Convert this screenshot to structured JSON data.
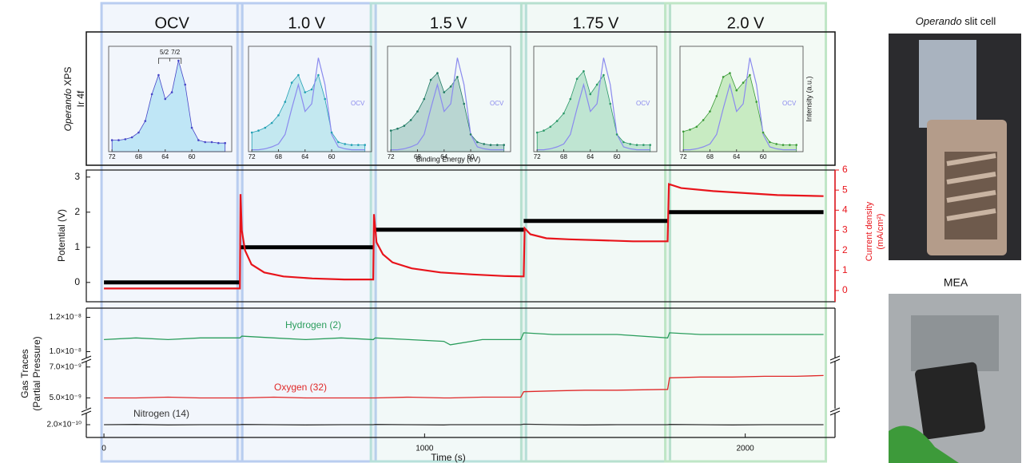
{
  "stages": [
    {
      "label": "OCV",
      "start": 0,
      "end": 424,
      "color": "#b9cdf0"
    },
    {
      "label": "1.0 V",
      "start": 424,
      "end": 840,
      "color": "#b9cdf0"
    },
    {
      "label": "1.5 V",
      "start": 840,
      "end": 1309,
      "color": "#b7e0da"
    },
    {
      "label": "1.75 V",
      "start": 1309,
      "end": 1758,
      "color": "#b7e0cf"
    },
    {
      "label": "2.0 V",
      "start": 1758,
      "end": 2244,
      "color": "#bfe6c6"
    }
  ],
  "photos": [
    {
      "title": {
        "italic": "Operando",
        "text": "slit cell"
      }
    },
    {
      "title": "MEA"
    }
  ],
  "chart_data": [
    {
      "type": "area",
      "ylabel": {
        "italic": "Operando",
        "text": "XPS"
      },
      "ylabel2": "Ir 4f",
      "xlabel": "Binding Energy (eV)",
      "y2label": "Intensity (a.u.)",
      "x": [
        72,
        71,
        70,
        69,
        68,
        67,
        66,
        65,
        64,
        63,
        62,
        61,
        60,
        59,
        58,
        57,
        56,
        55
      ],
      "xlim": [
        72.5,
        54
      ],
      "ylim": [
        0,
        1.1
      ],
      "xticks": [
        72,
        68,
        64,
        60
      ],
      "panels": [
        {
          "values": [
            0.12,
            0.12,
            0.13,
            0.15,
            0.2,
            0.32,
            0.6,
            0.8,
            0.55,
            0.62,
            0.95,
            0.7,
            0.25,
            0.12,
            0.1,
            0.1,
            0.09,
            0.09
          ],
          "fill": "#bfe6f6",
          "color": "#4646c8",
          "annotations": [
            "5/2",
            "7/2"
          ]
        },
        {
          "values": [
            0.2,
            0.22,
            0.25,
            0.3,
            0.38,
            0.52,
            0.72,
            0.8,
            0.62,
            0.65,
            0.8,
            0.55,
            0.2,
            0.1,
            0.08,
            0.07,
            0.07,
            0.07
          ],
          "fill": "#c3e8f0",
          "color": "#23a0b4",
          "reference": {
            "name": "OCV",
            "color": "#8a8aee",
            "values": [
              0.02,
              0.02,
              0.03,
              0.05,
              0.08,
              0.18,
              0.45,
              0.7,
              0.42,
              0.5,
              0.98,
              0.7,
              0.18,
              0.05,
              0.03,
              0.02,
              0.02,
              0.02
            ]
          }
        },
        {
          "values": [
            0.22,
            0.24,
            0.27,
            0.33,
            0.42,
            0.55,
            0.75,
            0.82,
            0.62,
            0.68,
            0.78,
            0.5,
            0.18,
            0.1,
            0.08,
            0.07,
            0.07,
            0.07
          ],
          "fill": "#b9d6d2",
          "color": "#1f7a63",
          "reference": {
            "name": "OCV",
            "color": "#8a8aee",
            "values": [
              0.02,
              0.02,
              0.03,
              0.05,
              0.08,
              0.18,
              0.45,
              0.7,
              0.42,
              0.5,
              0.98,
              0.7,
              0.18,
              0.05,
              0.03,
              0.02,
              0.02,
              0.02
            ]
          }
        },
        {
          "values": [
            0.2,
            0.22,
            0.26,
            0.32,
            0.4,
            0.55,
            0.76,
            0.84,
            0.6,
            0.7,
            0.8,
            0.5,
            0.18,
            0.1,
            0.08,
            0.07,
            0.07,
            0.07
          ],
          "fill": "#bfe5d2",
          "color": "#2a9868",
          "reference": {
            "name": "OCV",
            "color": "#8a8aee",
            "values": [
              0.02,
              0.02,
              0.03,
              0.05,
              0.08,
              0.18,
              0.45,
              0.7,
              0.42,
              0.5,
              0.98,
              0.7,
              0.18,
              0.05,
              0.03,
              0.02,
              0.02,
              0.02
            ]
          }
        },
        {
          "values": [
            0.21,
            0.23,
            0.26,
            0.33,
            0.42,
            0.58,
            0.78,
            0.82,
            0.64,
            0.72,
            0.8,
            0.52,
            0.2,
            0.1,
            0.08,
            0.07,
            0.07,
            0.07
          ],
          "fill": "#c8ebc2",
          "color": "#3a9a36",
          "reference": {
            "name": "OCV",
            "color": "#8a8aee",
            "values": [
              0.02,
              0.02,
              0.03,
              0.05,
              0.08,
              0.18,
              0.45,
              0.7,
              0.42,
              0.5,
              0.98,
              0.7,
              0.18,
              0.05,
              0.03,
              0.02,
              0.02,
              0.02
            ]
          }
        }
      ]
    },
    {
      "type": "line",
      "ylabel": "Potential (V)",
      "y2label": [
        "Current density",
        "(mA/cm²)"
      ],
      "xlim": [
        -55,
        2280
      ],
      "ylim": [
        -0.55,
        3.2
      ],
      "yticks": [
        0,
        1,
        2,
        3
      ],
      "y2lim": [
        -0.56,
        6.0
      ],
      "y2ticks": [
        0,
        1,
        2,
        3,
        4,
        5,
        6
      ],
      "series": [
        {
          "color": "#000000",
          "x": [
            0,
            424,
            424,
            424,
            840,
            840,
            840,
            1309,
            1309,
            1309,
            1758,
            1758,
            1758,
            2244
          ],
          "values": [
            0,
            0,
            null,
            1,
            1,
            null,
            1.5,
            1.5,
            null,
            1.75,
            1.75,
            null,
            2,
            2
          ]
        },
        {
          "color": "#e8141b",
          "axis": "y2",
          "x": [
            0,
            424,
            426,
            430,
            440,
            460,
            500,
            560,
            650,
            750,
            840,
            842,
            850,
            870,
            900,
            960,
            1050,
            1150,
            1250,
            1309,
            1312,
            1330,
            1380,
            1450,
            1550,
            1650,
            1758,
            1762,
            1800,
            1900,
            2000,
            2100,
            2244
          ],
          "values": [
            0.1,
            0.1,
            4.8,
            3.0,
            2.0,
            1.3,
            0.9,
            0.7,
            0.6,
            0.55,
            0.55,
            3.8,
            2.4,
            1.8,
            1.4,
            1.1,
            0.9,
            0.8,
            0.72,
            0.7,
            3.1,
            2.8,
            2.6,
            2.55,
            2.5,
            2.45,
            2.45,
            5.3,
            5.1,
            4.95,
            4.85,
            4.75,
            4.7
          ]
        }
      ]
    },
    {
      "type": "line",
      "ylabel": [
        "Gas Traces",
        "(Partial Pressure)"
      ],
      "xlabel": "Time (s)",
      "xlim": [
        -55,
        2280
      ],
      "xticks": [
        0,
        1000,
        2000
      ],
      "y_segments": [
        {
          "ylim": [
            9.65e-09,
            1.235e-08
          ],
          "yticks": [
            {
              "value": 1.2e-08,
              "label": "1.2×10⁻⁸"
            },
            {
              "value": 1e-08,
              "label": "1.0×10⁻⁸"
            }
          ]
        },
        {
          "ylim": [
            4.3e-09,
            7.4e-09
          ],
          "yticks": [
            {
              "value": 7e-09,
              "label": "7.0×10⁻⁹"
            },
            {
              "value": 5e-09,
              "label": "5.0×10⁻⁹"
            }
          ]
        },
        {
          "ylim": [
            1.5e-10,
            2.5e-10
          ],
          "yticks": [
            {
              "value": 2e-10,
              "label": "2.0×10⁻¹⁰"
            }
          ]
        }
      ],
      "x": [
        0,
        100,
        200,
        300,
        424,
        430,
        530,
        630,
        740,
        840,
        846,
        950,
        1060,
        1080,
        1180,
        1300,
        1309,
        1400,
        1500,
        1600,
        1758,
        1764,
        1860,
        1960,
        2060,
        2160,
        2244
      ],
      "series": [
        {
          "name": "Hydrogen (2)",
          "color": "#2a9d5c",
          "values": [
            1.07e-08,
            1.08e-08,
            1.07e-08,
            1.08e-08,
            1.08e-08,
            1.09e-08,
            1.08e-08,
            1.07e-08,
            1.08e-08,
            1.07e-08,
            1.08e-08,
            1.07e-08,
            1.06e-08,
            1.04e-08,
            1.07e-08,
            1.07e-08,
            1.11e-08,
            1.1e-08,
            1.1e-08,
            1.1e-08,
            1.08e-08,
            1.11e-08,
            1.1e-08,
            1.1e-08,
            1.1e-08,
            1.1e-08,
            1.1e-08
          ]
        },
        {
          "name": "Oxygen (32)",
          "color": "#e02828",
          "values": [
            5e-09,
            5e-09,
            5.05e-09,
            5e-09,
            5e-09,
            5e-09,
            5.05e-09,
            5e-09,
            5e-09,
            5e-09,
            5e-09,
            5.05e-09,
            5e-09,
            5e-09,
            5.05e-09,
            5.05e-09,
            5.4e-09,
            5.45e-09,
            5.5e-09,
            5.5e-09,
            5.55e-09,
            6.3e-09,
            6.35e-09,
            6.35e-09,
            6.4e-09,
            6.4e-09,
            6.45e-09
          ]
        },
        {
          "name": "Nitrogen (14)",
          "color": "#333333",
          "values": [
            2e-10,
            2.01e-10,
            1.99e-10,
            2e-10,
            2e-10,
            2.01e-10,
            2e-10,
            1.99e-10,
            2e-10,
            2e-10,
            2.01e-10,
            2e-10,
            1.99e-10,
            2e-10,
            2e-10,
            2e-10,
            2.02e-10,
            2e-10,
            1.99e-10,
            2e-10,
            2e-10,
            2.01e-10,
            2e-10,
            1.99e-10,
            2e-10,
            2e-10,
            2e-10
          ]
        }
      ]
    }
  ]
}
